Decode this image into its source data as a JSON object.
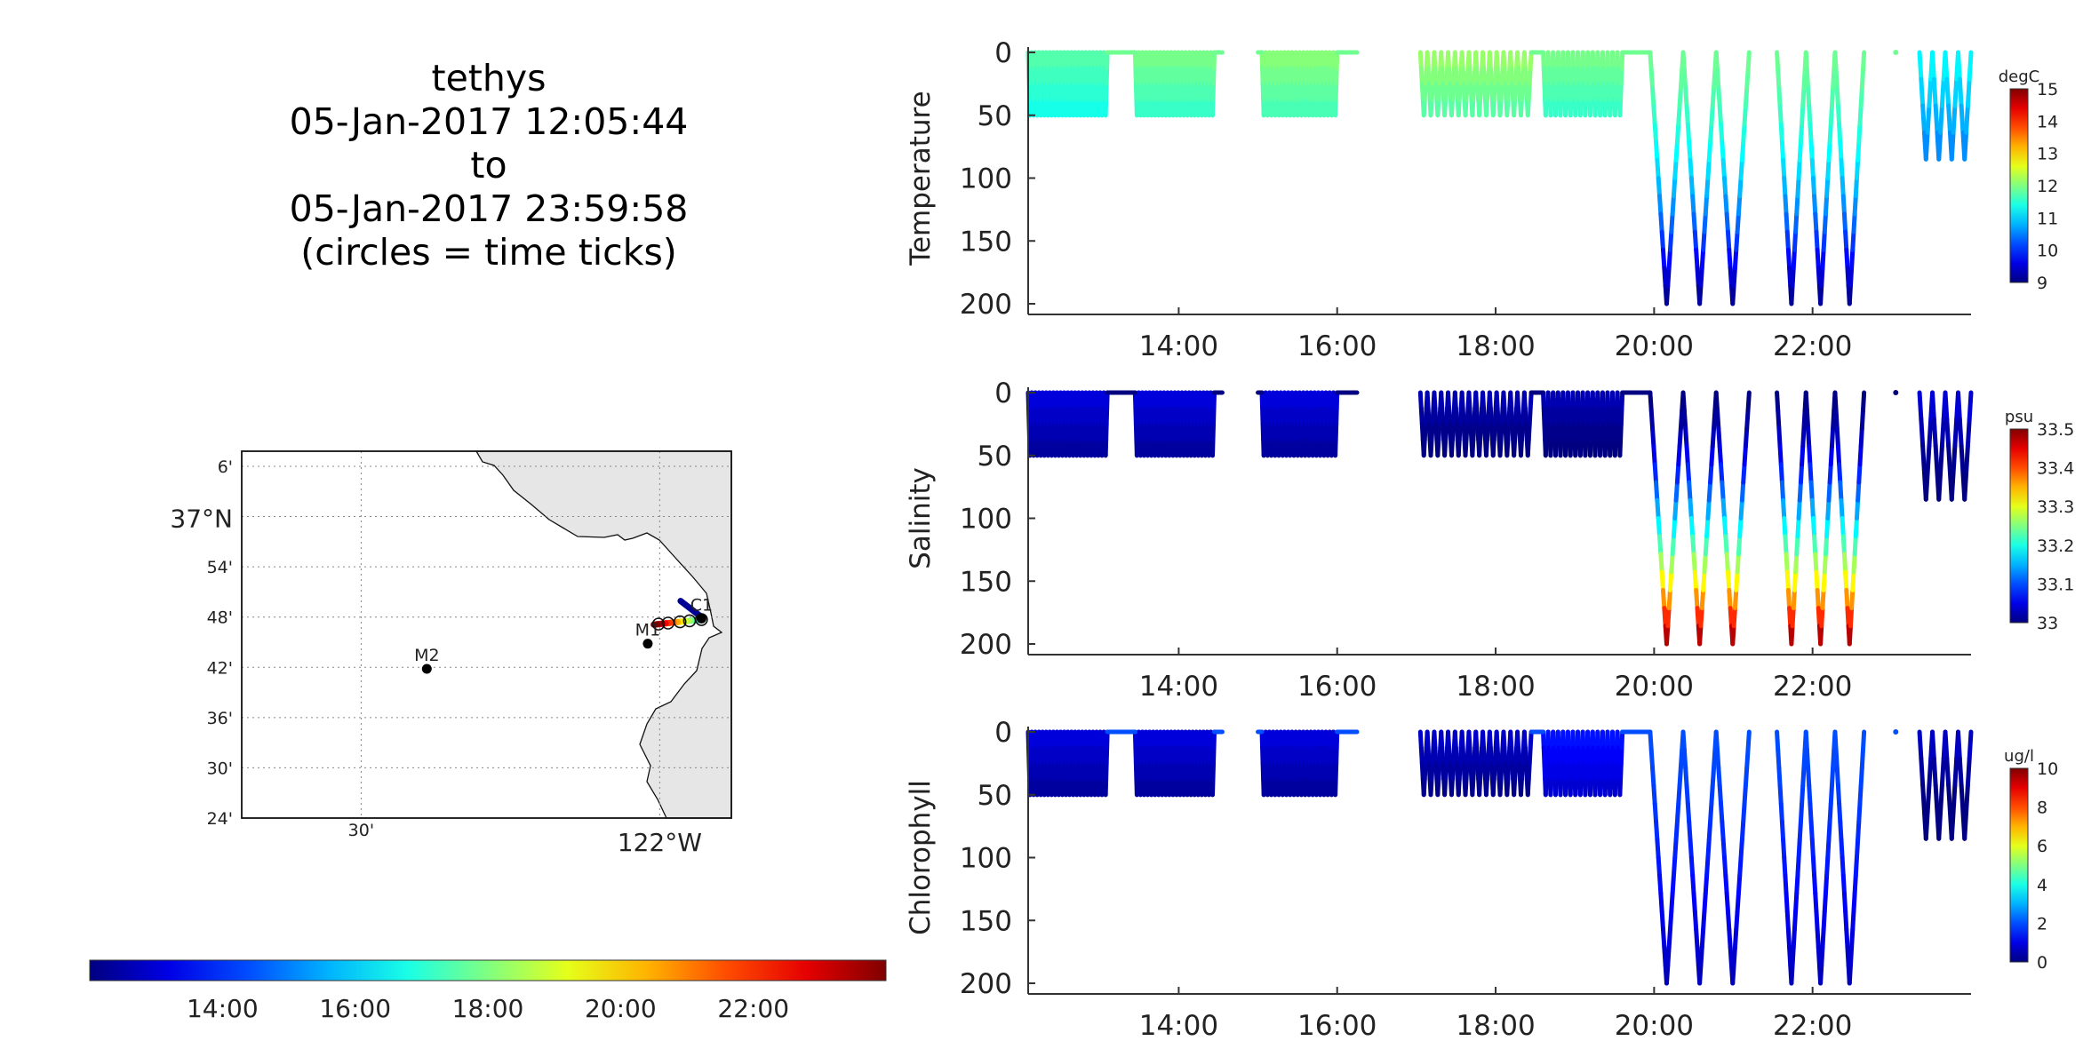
{
  "header": {
    "lines": [
      "tethys",
      "05-Jan-2017 12:05:44",
      "to",
      "05-Jan-2017 23:59:58",
      "(circles = time ticks)"
    ]
  },
  "map": {
    "lat_ticks": [
      "6'",
      "37°N",
      "54'",
      "48'",
      "42'",
      "36'",
      "30'",
      "24'"
    ],
    "lon_ticks": [
      "30'",
      "122°W"
    ],
    "stations": [
      {
        "name": "M2",
        "lon": -122.39,
        "lat": 36.697
      },
      {
        "name": "M1",
        "lon": -122.02,
        "lat": 36.747
      },
      {
        "name": "C1",
        "lon": -121.93,
        "lat": 36.797
      }
    ],
    "vehicle_track": {
      "start": {
        "lon": -121.93,
        "lat": 36.795
      },
      "end": {
        "lon": -122.01,
        "lat": 36.785
      }
    },
    "land_color": "#e6e6e6"
  },
  "time_colorbar": {
    "tick_labels": [
      "14:00",
      "16:00",
      "18:00",
      "20:00",
      "22:00"
    ],
    "range_hours": [
      12.0,
      24.0
    ]
  },
  "chart_data": [
    {
      "type": "scatter",
      "name_label": "Temperature",
      "ylabel": "Temperature",
      "unit": "degC",
      "ylim": [
        200,
        0
      ],
      "yticks": [
        0,
        50,
        100,
        150,
        200
      ],
      "xlim_hours": [
        12.1,
        24.0
      ],
      "xticks": [
        "14:00",
        "16:00",
        "18:00",
        "20:00",
        "22:00"
      ],
      "colorbar": {
        "min": 9,
        "max": 15,
        "ticks": [
          9,
          10,
          11,
          12,
          13,
          14,
          15
        ]
      },
      "surface_value": 11.9,
      "deep_value": 9.0,
      "yo_segments": [
        {
          "start": 12.1,
          "end": 13.1,
          "depth": 50,
          "n": 22,
          "color_value": 11.8
        },
        {
          "start": 13.45,
          "end": 14.45,
          "depth": 50,
          "n": 22,
          "color_value": 12.0
        },
        {
          "start": 15.05,
          "end": 16.0,
          "depth": 50,
          "n": 20,
          "color_value": 12.1
        },
        {
          "start": 17.05,
          "end": 18.45,
          "depth": 50,
          "n": 16,
          "color_value": 12.2
        },
        {
          "start": 18.6,
          "end": 19.6,
          "depth": 50,
          "n": 16,
          "color_value": 12.0
        },
        {
          "start": 19.95,
          "end": 21.2,
          "depth": 200,
          "n": 3,
          "color_value": 9.0
        },
        {
          "start": 21.55,
          "end": 22.65,
          "depth": 200,
          "n": 3,
          "color_value": 9.0
        },
        {
          "start": 23.35,
          "end": 24.0,
          "depth": 85,
          "n": 4,
          "color_value": 11.3
        }
      ]
    },
    {
      "type": "scatter",
      "name_label": "Salinity",
      "ylabel": "Salinity",
      "unit": "psu",
      "ylim": [
        200,
        0
      ],
      "yticks": [
        0,
        50,
        100,
        150,
        200
      ],
      "xlim_hours": [
        12.1,
        24.0
      ],
      "xticks": [
        "14:00",
        "16:00",
        "18:00",
        "20:00",
        "22:00"
      ],
      "colorbar": {
        "min": 33,
        "max": 33.5,
        "ticks": [
          33,
          33.1,
          33.2,
          33.3,
          33.4,
          33.5
        ]
      },
      "surface_value": 33.0,
      "deep_value": 33.5,
      "yo_segments": [
        {
          "start": 12.1,
          "end": 13.1,
          "depth": 50,
          "n": 22,
          "color_value": 33.05
        },
        {
          "start": 13.45,
          "end": 14.45,
          "depth": 50,
          "n": 22,
          "color_value": 33.05
        },
        {
          "start": 15.05,
          "end": 16.0,
          "depth": 50,
          "n": 20,
          "color_value": 33.05
        },
        {
          "start": 17.05,
          "end": 18.45,
          "depth": 50,
          "n": 16,
          "color_value": 33.03
        },
        {
          "start": 18.6,
          "end": 19.6,
          "depth": 50,
          "n": 16,
          "color_value": 33.03
        },
        {
          "start": 19.95,
          "end": 21.2,
          "depth": 200,
          "n": 3,
          "color_value": 33.5
        },
        {
          "start": 21.55,
          "end": 22.65,
          "depth": 200,
          "n": 3,
          "color_value": 33.5
        },
        {
          "start": 23.35,
          "end": 24.0,
          "depth": 85,
          "n": 4,
          "color_value": 33.05
        }
      ]
    },
    {
      "type": "scatter",
      "name_label": "Chlorophyll",
      "ylabel": "Chlorophyll",
      "unit": "ug/l",
      "ylim": [
        200,
        0
      ],
      "yticks": [
        0,
        50,
        100,
        150,
        200
      ],
      "xlim_hours": [
        12.1,
        24.0
      ],
      "xticks": [
        "14:00",
        "16:00",
        "18:00",
        "20:00",
        "22:00"
      ],
      "colorbar": {
        "min": 0,
        "max": 10,
        "ticks": [
          0,
          2,
          4,
          6,
          8,
          10
        ]
      },
      "surface_value": 2.0,
      "deep_value": 0.5,
      "yo_segments": [
        {
          "start": 12.1,
          "end": 13.1,
          "depth": 50,
          "n": 22,
          "color_value": 1.0
        },
        {
          "start": 13.45,
          "end": 14.45,
          "depth": 50,
          "n": 22,
          "color_value": 1.0
        },
        {
          "start": 15.05,
          "end": 16.0,
          "depth": 50,
          "n": 20,
          "color_value": 1.0
        },
        {
          "start": 17.05,
          "end": 18.45,
          "depth": 50,
          "n": 16,
          "color_value": 0.8
        },
        {
          "start": 18.6,
          "end": 19.6,
          "depth": 50,
          "n": 16,
          "color_value": 1.5
        },
        {
          "start": 19.95,
          "end": 21.2,
          "depth": 200,
          "n": 3,
          "color_value": 0.5
        },
        {
          "start": 21.55,
          "end": 22.65,
          "depth": 200,
          "n": 3,
          "color_value": 0.5
        },
        {
          "start": 23.35,
          "end": 24.0,
          "depth": 85,
          "n": 4,
          "color_value": 0.8
        }
      ]
    }
  ]
}
